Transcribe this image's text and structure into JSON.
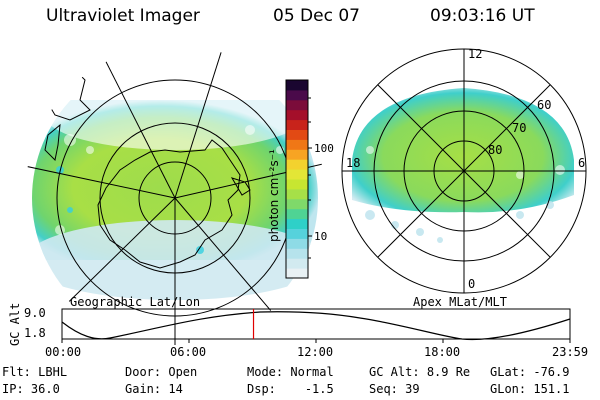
{
  "header": {
    "instrument": "Ultraviolet Imager",
    "date": "05 Dec 07",
    "time": "09:03:16 UT"
  },
  "left_panel": {
    "label": "Geographic Lat/Lon"
  },
  "right_panel": {
    "label": "Apex MLat/MLT",
    "mlt_labels": {
      "top": "12",
      "left": "18",
      "right": "6",
      "bottom": "0"
    },
    "mlat_labels": [
      "60",
      "70",
      "80"
    ]
  },
  "colorbar": {
    "units": "photon cm⁻²s⁻¹",
    "tick_100": "100",
    "tick_10": "10",
    "colors": [
      "#e9f1f4",
      "#d2eaf0",
      "#b6e3ec",
      "#8edbe6",
      "#56d2dc",
      "#2ed0c8",
      "#4fd394",
      "#7fd96a",
      "#a6e048",
      "#c7e631",
      "#e3e636",
      "#f3d22e",
      "#f7a423",
      "#f07716",
      "#e24a14",
      "#c8231b",
      "#a40f2a",
      "#7b0c3a",
      "#4a0a4a",
      "#1a0630"
    ]
  },
  "orbit": {
    "ylabel": "GC Alt",
    "y_ticks": [
      "9.0",
      "1.8"
    ],
    "x_ticks": [
      "00:00",
      "06:00",
      "12:00",
      "18:00",
      "23:59"
    ],
    "current_time_fraction": 0.377
  },
  "info": {
    "row1": [
      {
        "label": "Flt:",
        "value": "LBHL"
      },
      {
        "label": "Door:",
        "value": "Open"
      },
      {
        "label": "Mode:",
        "value": "Normal"
      },
      {
        "label": "GC Alt:",
        "value": "8.9 Re"
      },
      {
        "label": "GLat:",
        "value": "-76.9"
      }
    ],
    "row2": [
      {
        "label": "IP:",
        "value": "36.0"
      },
      {
        "label": "Gain:",
        "value": "14"
      },
      {
        "label": "Dsp:",
        "value": "-1.5"
      },
      {
        "label": "Seq:",
        "value": "39"
      },
      {
        "label": "GLon:",
        "value": "151.1"
      }
    ]
  }
}
